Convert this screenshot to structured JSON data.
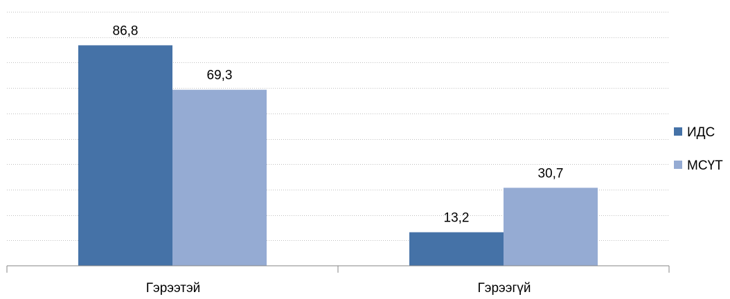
{
  "chart_data": {
    "type": "bar",
    "categories": [
      "Гэрээтэй",
      "Гэрээгүй"
    ],
    "series": [
      {
        "name": "ИДС",
        "values": [
          86.8,
          13.2
        ],
        "labels": [
          "86,8",
          "13,2"
        ],
        "color": "#4572a7"
      },
      {
        "name": "МСҮТ",
        "values": [
          69.3,
          30.7
        ],
        "labels": [
          "69,3",
          "30,7"
        ],
        "color": "#95abd3"
      }
    ],
    "ylim": [
      0,
      100
    ],
    "grid": true,
    "legend_position": "right"
  }
}
